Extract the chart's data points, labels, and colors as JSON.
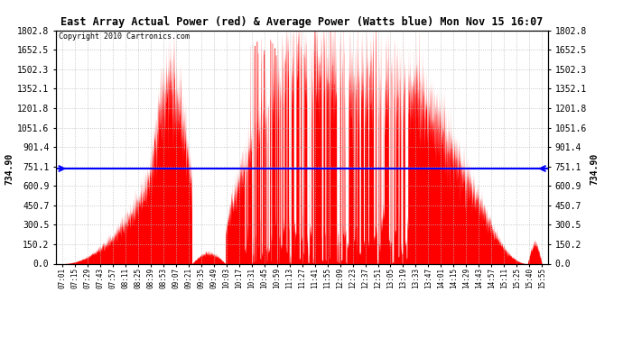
{
  "title": "East Array Actual Power (red) & Average Power (Watts blue) Mon Nov 15 16:07",
  "copyright": "Copyright 2010 Cartronics.com",
  "avg_power": 734.9,
  "ymax": 1802.8,
  "ymin": 0.0,
  "yticks": [
    0.0,
    150.2,
    300.5,
    450.7,
    600.9,
    751.1,
    901.4,
    1051.6,
    1201.8,
    1352.1,
    1502.3,
    1652.5,
    1802.8
  ],
  "ytick_labels": [
    "0.0",
    "150.2",
    "300.5",
    "450.7",
    "600.9",
    "751.1",
    "901.4",
    "1051.6",
    "1201.8",
    "1352.1",
    "1502.3",
    "1652.5",
    "1802.8"
  ],
  "xtick_labels": [
    "07:01",
    "07:15",
    "07:29",
    "07:43",
    "07:57",
    "08:11",
    "08:25",
    "08:39",
    "08:53",
    "09:07",
    "09:21",
    "09:35",
    "09:49",
    "10:03",
    "10:17",
    "10:31",
    "10:45",
    "10:59",
    "11:13",
    "11:27",
    "11:41",
    "11:55",
    "12:09",
    "12:23",
    "12:37",
    "12:51",
    "13:05",
    "13:19",
    "13:33",
    "13:47",
    "14:01",
    "14:15",
    "14:29",
    "14:43",
    "14:57",
    "15:11",
    "15:25",
    "15:40",
    "15:55"
  ],
  "bg_color": "#ffffff",
  "fill_color": "#ff0000",
  "line_color": "#0000ff",
  "avg_label": "734.90",
  "grid_color": "#bbbbbb",
  "left_arrow_label": "734.90",
  "right_arrow_label": "734.90"
}
